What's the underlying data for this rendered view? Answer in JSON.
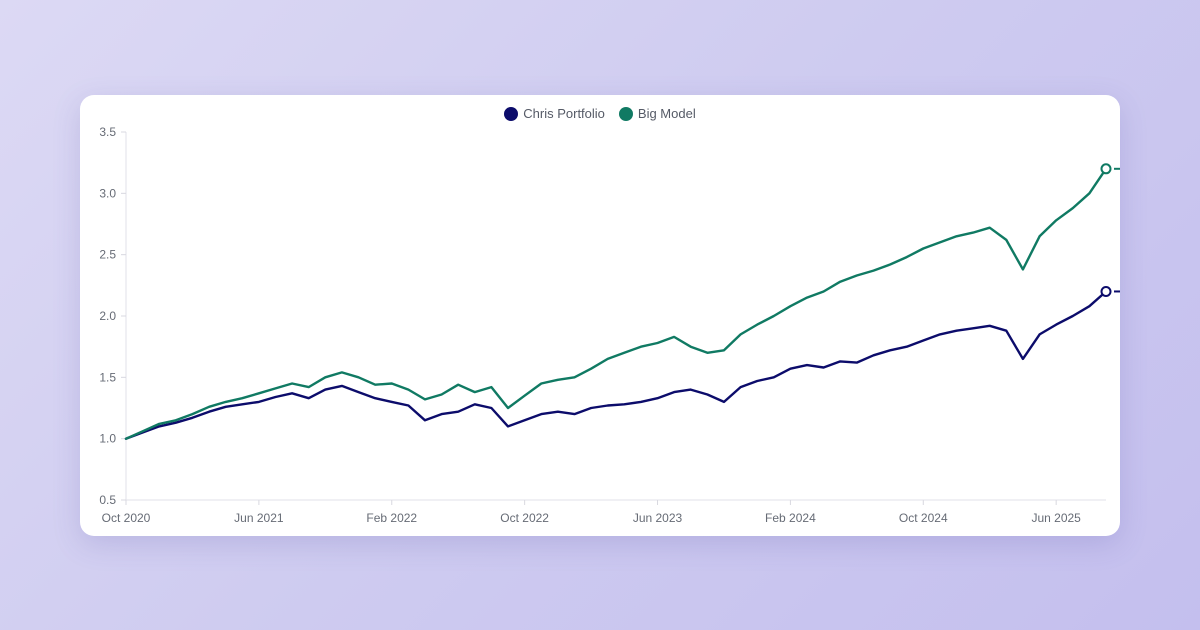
{
  "chart_data": {
    "type": "line",
    "title": "",
    "xlabel": "",
    "ylabel": "",
    "ylim": [
      0.5,
      3.5
    ],
    "yticks": [
      "0.5",
      "1.0",
      "1.5",
      "2.0",
      "2.5",
      "3.0",
      "3.5"
    ],
    "xticks": [
      "Oct 2020",
      "Jun 2021",
      "Feb 2022",
      "Oct 2022",
      "Jun 2023",
      "Feb 2024",
      "Oct 2024",
      "Jun 2025"
    ],
    "xtick_dates": [
      "2020-10",
      "2021-06",
      "2022-02",
      "2022-10",
      "2023-06",
      "2024-02",
      "2024-10",
      "2025-06"
    ],
    "grid": false,
    "legend_position": "top-center",
    "x": [
      "2020-10",
      "2020-11",
      "2020-12",
      "2021-01",
      "2021-02",
      "2021-03",
      "2021-04",
      "2021-05",
      "2021-06",
      "2021-07",
      "2021-08",
      "2021-09",
      "2021-10",
      "2021-11",
      "2021-12",
      "2022-01",
      "2022-02",
      "2022-03",
      "2022-04",
      "2022-05",
      "2022-06",
      "2022-07",
      "2022-08",
      "2022-09",
      "2022-10",
      "2022-11",
      "2022-12",
      "2023-01",
      "2023-02",
      "2023-03",
      "2023-04",
      "2023-05",
      "2023-06",
      "2023-07",
      "2023-08",
      "2023-09",
      "2023-10",
      "2023-11",
      "2023-12",
      "2024-01",
      "2024-02",
      "2024-03",
      "2024-04",
      "2024-05",
      "2024-06",
      "2024-07",
      "2024-08",
      "2024-09",
      "2024-10",
      "2024-11",
      "2024-12",
      "2025-01",
      "2025-02",
      "2025-03",
      "2025-04",
      "2025-05",
      "2025-06",
      "2025-07",
      "2025-08",
      "2025-09"
    ],
    "series": [
      {
        "name": "Chris Portfolio",
        "color": "#0c0c6b",
        "values": [
          1.0,
          1.05,
          1.1,
          1.13,
          1.17,
          1.22,
          1.26,
          1.28,
          1.3,
          1.34,
          1.37,
          1.33,
          1.4,
          1.43,
          1.38,
          1.33,
          1.3,
          1.27,
          1.15,
          1.2,
          1.22,
          1.28,
          1.25,
          1.1,
          1.15,
          1.2,
          1.22,
          1.2,
          1.25,
          1.27,
          1.28,
          1.3,
          1.33,
          1.38,
          1.4,
          1.36,
          1.3,
          1.42,
          1.47,
          1.5,
          1.57,
          1.6,
          1.58,
          1.63,
          1.62,
          1.68,
          1.72,
          1.75,
          1.8,
          1.85,
          1.88,
          1.9,
          1.92,
          1.88,
          1.65,
          1.85,
          1.93,
          2.0,
          2.08,
          2.2
        ]
      },
      {
        "name": "Big Model",
        "color": "#107a63",
        "values": [
          1.0,
          1.06,
          1.12,
          1.15,
          1.2,
          1.26,
          1.3,
          1.33,
          1.37,
          1.41,
          1.45,
          1.42,
          1.5,
          1.54,
          1.5,
          1.44,
          1.45,
          1.4,
          1.32,
          1.36,
          1.44,
          1.38,
          1.42,
          1.25,
          1.35,
          1.45,
          1.48,
          1.5,
          1.57,
          1.65,
          1.7,
          1.75,
          1.78,
          1.83,
          1.75,
          1.7,
          1.72,
          1.85,
          1.93,
          2.0,
          2.08,
          2.15,
          2.2,
          2.28,
          2.33,
          2.37,
          2.42,
          2.48,
          2.55,
          2.6,
          2.65,
          2.68,
          2.72,
          2.62,
          2.38,
          2.65,
          2.78,
          2.88,
          3.0,
          3.2
        ]
      }
    ],
    "end_markers": true
  }
}
